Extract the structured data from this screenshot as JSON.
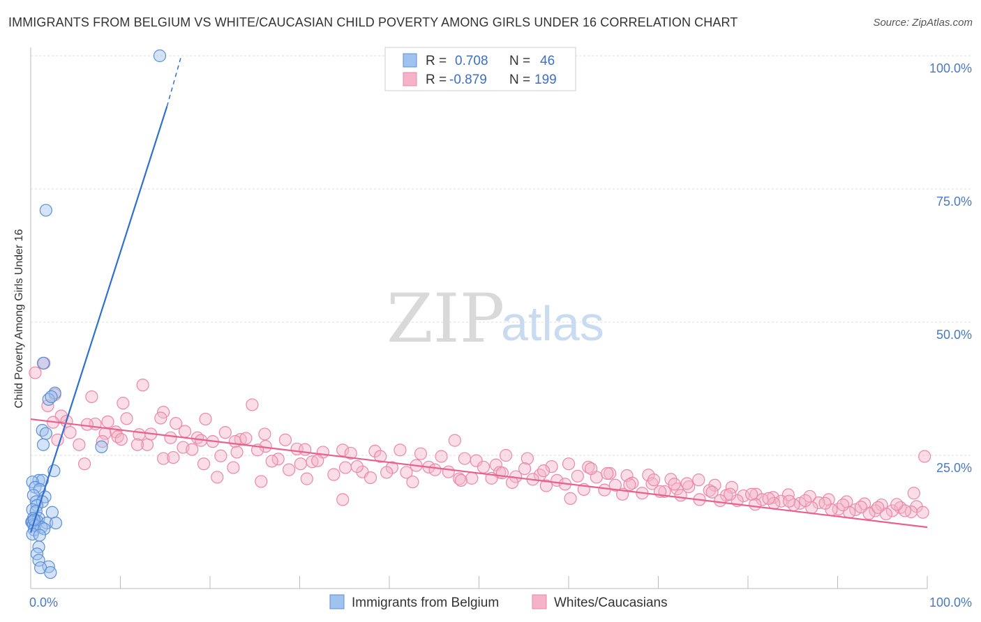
{
  "header": {
    "title": "IMMIGRANTS FROM BELGIUM VS WHITE/CAUCASIAN CHILD POVERTY AMONG GIRLS UNDER 16 CORRELATION CHART",
    "source": "Source: ZipAtlas.com"
  },
  "watermark": {
    "zip": "ZIP",
    "atlas": "atlas"
  },
  "legend": {
    "rows": [
      {
        "r_label": "R =",
        "r_value": "0.708",
        "n_label": "N =",
        "n_value": "46",
        "color": "#9fc2ef"
      },
      {
        "r_label": "R =",
        "r_value": "-0.879",
        "n_label": "N =",
        "n_value": "199",
        "color": "#f4b3c8"
      }
    ]
  },
  "bottom_legend": {
    "items": [
      {
        "label": "Immigrants from Belgium",
        "color": "#9fc2ef"
      },
      {
        "label": "Whites/Caucasians",
        "color": "#f4b3c8"
      }
    ]
  },
  "colors": {
    "blue_fill": "#9fc2ef",
    "blue_stroke": "#5b8fd6",
    "blue_line": "#2f6fce",
    "pink_fill": "#f4b3c8",
    "pink_stroke": "#e889a8",
    "pink_line": "#e8608c",
    "grid": "#dddddd",
    "tick_text": "#4a78c2"
  },
  "chart_data": {
    "type": "scatter",
    "title": "IMMIGRANTS FROM BELGIUM VS WHITE/CAUCASIAN CHILD POVERTY AMONG GIRLS UNDER 16 CORRELATION CHART",
    "xlabel": "",
    "ylabel": "Child Poverty Among Girls Under 16",
    "xlim": [
      0,
      100
    ],
    "ylim": [
      0,
      100
    ],
    "x_tick_labels": [
      "0.0%",
      "100.0%"
    ],
    "y_tick_labels": [
      "25.0%",
      "50.0%",
      "75.0%",
      "100.0%"
    ],
    "y_ticks": [
      25,
      50,
      75,
      100
    ],
    "grid": true,
    "legend_placement": "top-center",
    "series": [
      {
        "name": "Immigrants from Belgium",
        "R": 0.708,
        "N": 46,
        "trend": {
          "x": [
            0.0,
            15.2
          ],
          "y": [
            10.5,
            90.5
          ],
          "dashed_to": [
            16.8,
            100.0
          ]
        },
        "points": [
          [
            14.4,
            100.0
          ],
          [
            1.7,
            71.0
          ],
          [
            1.4,
            42.3
          ],
          [
            2.7,
            36.7
          ],
          [
            2.0,
            35.5
          ],
          [
            2.3,
            36.0
          ],
          [
            1.3,
            29.7
          ],
          [
            1.7,
            29.1
          ],
          [
            1.4,
            27.0
          ],
          [
            7.9,
            26.6
          ],
          [
            2.6,
            22.1
          ],
          [
            0.9,
            20.3
          ],
          [
            1.3,
            20.3
          ],
          [
            0.2,
            20.0
          ],
          [
            0.5,
            19.0
          ],
          [
            1.0,
            18.6
          ],
          [
            0.3,
            17.5
          ],
          [
            1.6,
            17.2
          ],
          [
            0.6,
            16.3
          ],
          [
            1.3,
            16.3
          ],
          [
            0.7,
            15.6
          ],
          [
            0.2,
            14.8
          ],
          [
            0.6,
            14.5
          ],
          [
            2.4,
            14.3
          ],
          [
            0.3,
            13.2
          ],
          [
            0.9,
            13.2
          ],
          [
            0.4,
            12.7
          ],
          [
            0.7,
            12.7
          ],
          [
            0.1,
            12.5
          ],
          [
            0.2,
            12.5
          ],
          [
            0.3,
            12.0
          ],
          [
            1.8,
            12.3
          ],
          [
            2.8,
            12.3
          ],
          [
            0.5,
            11.8
          ],
          [
            1.2,
            11.5
          ],
          [
            0.4,
            11.0
          ],
          [
            1.5,
            11.2
          ],
          [
            0.2,
            10.2
          ],
          [
            1.0,
            10.0
          ],
          [
            0.9,
            7.8
          ],
          [
            0.7,
            6.5
          ],
          [
            0.9,
            5.3
          ],
          [
            2.0,
            4.1
          ],
          [
            1.1,
            3.9
          ],
          [
            2.2,
            3.0
          ],
          [
            0.4,
            12.9
          ]
        ]
      },
      {
        "name": "Whites/Caucasians",
        "R": -0.879,
        "N": 199,
        "trend": {
          "x": [
            0.0,
            100.0
          ],
          "y": [
            31.8,
            11.5
          ]
        },
        "points": [
          [
            0.5,
            40.5
          ],
          [
            1.5,
            42.3
          ],
          [
            12.5,
            38.2
          ],
          [
            2.7,
            36.4
          ],
          [
            6.8,
            36.0
          ],
          [
            10.3,
            34.8
          ],
          [
            1.9,
            34.3
          ],
          [
            24.7,
            34.5
          ],
          [
            3.4,
            32.4
          ],
          [
            14.8,
            33.1
          ],
          [
            7.2,
            30.9
          ],
          [
            10.7,
            31.9
          ],
          [
            14.5,
            32.0
          ],
          [
            6.3,
            30.8
          ],
          [
            4.0,
            31.4
          ],
          [
            8.6,
            31.3
          ],
          [
            19.5,
            31.8
          ],
          [
            16.2,
            31.0
          ],
          [
            9.5,
            29.4
          ],
          [
            8.3,
            29.1
          ],
          [
            13.4,
            29.0
          ],
          [
            17.2,
            29.5
          ],
          [
            18.6,
            28.3
          ],
          [
            21.7,
            29.3
          ],
          [
            23.4,
            28.0
          ],
          [
            26.1,
            29.0
          ],
          [
            12.1,
            28.9
          ],
          [
            9.7,
            28.5
          ],
          [
            15.6,
            28.3
          ],
          [
            19.0,
            27.8
          ],
          [
            22.8,
            27.6
          ],
          [
            5.4,
            27.0
          ],
          [
            13.0,
            27.0
          ],
          [
            20.3,
            27.6
          ],
          [
            28.4,
            27.9
          ],
          [
            29.7,
            26.2
          ],
          [
            26.2,
            26.7
          ],
          [
            30.6,
            26.1
          ],
          [
            34.8,
            26.0
          ],
          [
            38.4,
            25.8
          ],
          [
            41.2,
            26.0
          ],
          [
            47.3,
            27.8
          ],
          [
            32.6,
            25.6
          ],
          [
            35.7,
            25.4
          ],
          [
            39.0,
            24.8
          ],
          [
            43.5,
            25.3
          ],
          [
            45.8,
            24.8
          ],
          [
            49.7,
            24.0
          ],
          [
            51.9,
            23.2
          ],
          [
            53.0,
            25.0
          ],
          [
            55.4,
            24.4
          ],
          [
            58.1,
            22.9
          ],
          [
            60.0,
            23.4
          ],
          [
            62.2,
            22.8
          ],
          [
            64.6,
            21.6
          ],
          [
            66.5,
            21.2
          ],
          [
            68.9,
            21.3
          ],
          [
            71.4,
            20.5
          ],
          [
            74.5,
            20.4
          ],
          [
            72.1,
            18.7
          ],
          [
            76.3,
            19.4
          ],
          [
            78.2,
            19.0
          ],
          [
            80.9,
            17.7
          ],
          [
            82.8,
            17.1
          ],
          [
            84.5,
            17.6
          ],
          [
            86.9,
            17.3
          ],
          [
            89.0,
            16.7
          ],
          [
            91.0,
            16.3
          ],
          [
            93.0,
            15.9
          ],
          [
            94.9,
            15.7
          ],
          [
            97.0,
            15.2
          ],
          [
            98.8,
            15.4
          ],
          [
            99.7,
            24.8
          ],
          [
            3.0,
            27.9
          ],
          [
            6.0,
            23.4
          ],
          [
            10.1,
            28.0
          ],
          [
            11.9,
            27.0
          ],
          [
            14.8,
            24.4
          ],
          [
            17.0,
            26.5
          ],
          [
            19.3,
            23.4
          ],
          [
            21.2,
            24.9
          ],
          [
            22.6,
            22.7
          ],
          [
            24.0,
            28.2
          ],
          [
            25.3,
            26.0
          ],
          [
            27.6,
            24.3
          ],
          [
            30.1,
            23.4
          ],
          [
            31.4,
            23.8
          ],
          [
            33.8,
            21.4
          ],
          [
            35.1,
            22.7
          ],
          [
            37.0,
            21.9
          ],
          [
            40.3,
            22.7
          ],
          [
            41.9,
            21.8
          ],
          [
            44.4,
            22.8
          ],
          [
            46.6,
            21.9
          ],
          [
            48.4,
            24.4
          ],
          [
            50.5,
            22.8
          ],
          [
            52.3,
            21.8
          ],
          [
            54.1,
            21.0
          ],
          [
            56.8,
            21.3
          ],
          [
            58.7,
            20.3
          ],
          [
            61.0,
            21.1
          ],
          [
            63.1,
            20.9
          ],
          [
            65.2,
            19.4
          ],
          [
            67.1,
            19.8
          ],
          [
            69.3,
            19.7
          ],
          [
            70.7,
            18.2
          ],
          [
            73.4,
            19.1
          ],
          [
            75.7,
            18.4
          ],
          [
            77.6,
            17.5
          ],
          [
            79.5,
            17.4
          ],
          [
            81.6,
            16.7
          ],
          [
            83.7,
            16.4
          ],
          [
            85.8,
            16.0
          ],
          [
            87.9,
            16.1
          ],
          [
            90.1,
            14.9
          ],
          [
            92.0,
            14.8
          ],
          [
            94.2,
            14.6
          ],
          [
            96.1,
            14.6
          ],
          [
            98.2,
            14.4
          ],
          [
            2.5,
            31.2
          ],
          [
            4.4,
            29.3
          ],
          [
            8.0,
            27.6
          ],
          [
            15.9,
            24.6
          ],
          [
            18.0,
            26.1
          ],
          [
            23.0,
            25.6
          ],
          [
            26.9,
            23.9
          ],
          [
            28.8,
            22.3
          ],
          [
            32.0,
            24.0
          ],
          [
            36.4,
            22.9
          ],
          [
            39.7,
            21.8
          ],
          [
            43.0,
            23.1
          ],
          [
            45.1,
            22.3
          ],
          [
            47.8,
            20.6
          ],
          [
            49.2,
            20.7
          ],
          [
            51.4,
            20.7
          ],
          [
            53.7,
            19.9
          ],
          [
            56.0,
            20.5
          ],
          [
            57.5,
            19.3
          ],
          [
            59.6,
            19.6
          ],
          [
            61.7,
            18.6
          ],
          [
            64.0,
            18.5
          ],
          [
            66.0,
            17.7
          ],
          [
            68.2,
            17.9
          ],
          [
            70.2,
            18.2
          ],
          [
            72.5,
            17.5
          ],
          [
            74.6,
            16.7
          ],
          [
            76.9,
            16.5
          ],
          [
            78.8,
            16.5
          ],
          [
            80.8,
            15.8
          ],
          [
            82.9,
            16.0
          ],
          [
            85.1,
            15.7
          ],
          [
            87.1,
            15.2
          ],
          [
            89.3,
            14.8
          ],
          [
            91.3,
            14.3
          ],
          [
            93.5,
            14.1
          ],
          [
            95.4,
            14.0
          ],
          [
            97.5,
            14.6
          ],
          [
            99.5,
            14.3
          ],
          [
            34.8,
            16.7
          ],
          [
            60.2,
            16.9
          ],
          [
            20.8,
            20.9
          ],
          [
            25.7,
            20.1
          ],
          [
            30.8,
            20.6
          ],
          [
            37.9,
            20.8
          ],
          [
            42.6,
            20.0
          ],
          [
            48.0,
            20.3
          ],
          [
            52.6,
            21.7
          ],
          [
            55.1,
            22.5
          ],
          [
            57.2,
            22.1
          ],
          [
            62.5,
            22.5
          ],
          [
            64.3,
            21.6
          ],
          [
            66.8,
            19.5
          ],
          [
            69.5,
            20.4
          ],
          [
            71.8,
            19.6
          ],
          [
            73.2,
            19.7
          ],
          [
            76.0,
            18.1
          ],
          [
            78.0,
            17.7
          ],
          [
            80.4,
            17.7
          ],
          [
            82.3,
            16.9
          ],
          [
            84.6,
            16.4
          ],
          [
            86.4,
            16.5
          ],
          [
            88.6,
            16.0
          ],
          [
            90.6,
            15.7
          ],
          [
            92.6,
            15.3
          ],
          [
            94.5,
            15.2
          ],
          [
            96.6,
            15.8
          ],
          [
            98.5,
            17.9
          ]
        ]
      }
    ]
  }
}
